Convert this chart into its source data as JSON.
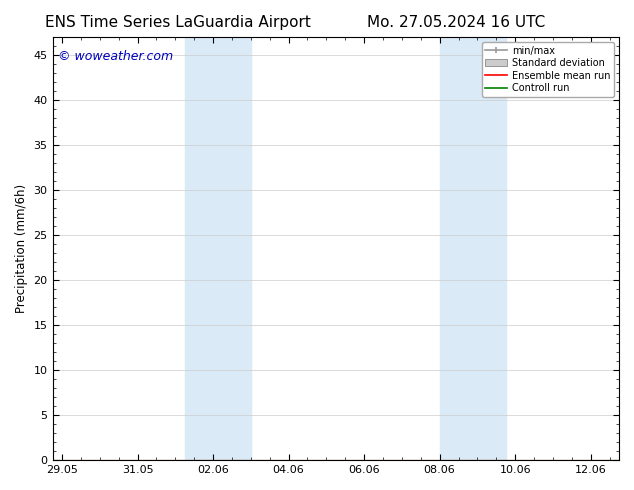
{
  "title_left": "ENS Time Series LaGuardia Airport",
  "title_right": "Mo. 27.05.2024 16 UTC",
  "ylabel": "Precipitation (mm/6h)",
  "watermark": "© woweather.com",
  "watermark_color": "#0000bb",
  "ylim": [
    0,
    47
  ],
  "yticks": [
    0,
    5,
    10,
    15,
    20,
    25,
    30,
    35,
    40,
    45
  ],
  "background_color": "#ffffff",
  "plot_bg_color": "#ffffff",
  "shading_color": "#daeaf7",
  "shading_alpha": 1.0,
  "shaded_bands": [
    {
      "x_start": 3.5,
      "x_end": 4.5
    },
    {
      "x_start": 4.5,
      "x_end": 5.5
    },
    {
      "x_start": 10.5,
      "x_end": 11.5
    },
    {
      "x_start": 11.5,
      "x_end": 12.5
    }
  ],
  "x_tick_labels": [
    "29.05",
    "31.05",
    "02.06",
    "04.06",
    "06.06",
    "08.06",
    "10.06",
    "12.06"
  ],
  "x_tick_positions": [
    0.0,
    2.0,
    4.0,
    6.0,
    8.0,
    10.0,
    12.0,
    14.0
  ],
  "xlim": [
    -0.25,
    14.75
  ],
  "legend_labels": [
    "min/max",
    "Standard deviation",
    "Ensemble mean run",
    "Controll run"
  ],
  "legend_colors": [
    "#999999",
    "#cccccc",
    "#ff0000",
    "#008000"
  ],
  "grid_color": "#cccccc",
  "title_fontsize": 11,
  "label_fontsize": 8.5,
  "watermark_fontsize": 9,
  "tick_label_fontsize": 8
}
